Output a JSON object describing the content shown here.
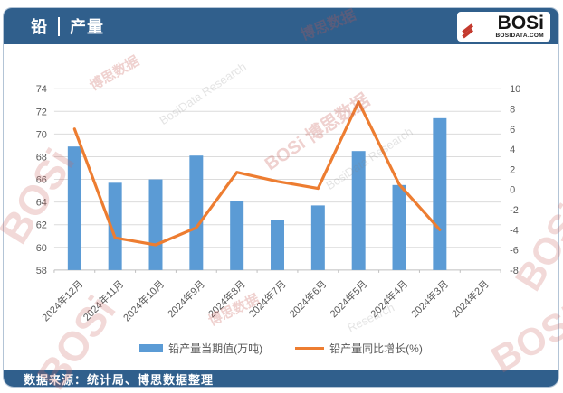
{
  "theme": {
    "brand_blue": "#305F8C",
    "bar_color": "#5B9BD5",
    "line_color": "#ED7D31",
    "axis_text_color": "#595959",
    "gridline_color": "#DCDCDC"
  },
  "header": {
    "title_prefix": "铅",
    "title_name": "产量",
    "logo": {
      "text": "BOSi",
      "subtext": "BOSIDATA.COM"
    }
  },
  "footer": {
    "source_text": "数据来源：统计局、博思数据整理"
  },
  "watermark": {
    "items": [
      {
        "text": "博思数据"
      },
      {
        "text": "BOSi"
      },
      {
        "text": "博思数据"
      },
      {
        "text": "BosiData Research"
      },
      {
        "text": "BOSi 博思数据"
      },
      {
        "text": "BosiData Research"
      },
      {
        "text": "BOSi"
      },
      {
        "text": "博思数据"
      },
      {
        "text": "Research"
      },
      {
        "text": "BOSi"
      },
      {
        "text": "BOSi"
      }
    ]
  },
  "chart_data": {
    "type": "bar+line combo",
    "title": "铅 | 产量",
    "categories": [
      "2024年12月",
      "2024年11月",
      "2024年10月",
      "2024年9月",
      "2024年8月",
      "2024年7月",
      "2024年6月",
      "2024年5月",
      "2024年4月",
      "2024年3月",
      "2024年2月"
    ],
    "series": [
      {
        "name": "铅产量当期值(万吨)",
        "type": "bar",
        "axis": "left",
        "color": "#5B9BD5",
        "values": [
          68.9,
          65.7,
          66.0,
          68.1,
          64.1,
          62.4,
          63.7,
          68.5,
          65.5,
          71.4,
          null
        ]
      },
      {
        "name": "铅产量同比增长(%)",
        "type": "line",
        "axis": "right",
        "color": "#ED7D31",
        "values": [
          6.0,
          -4.8,
          -5.5,
          -3.8,
          1.7,
          0.8,
          0.1,
          8.7,
          0.5,
          -4.0,
          null
        ]
      }
    ],
    "left_axis": {
      "min": 58,
      "max": 74,
      "step": 2,
      "ticks": [
        58,
        60,
        62,
        64,
        66,
        68,
        70,
        72,
        74
      ]
    },
    "right_axis": {
      "min": -8,
      "max": 10,
      "step": 2,
      "ticks": [
        -8,
        -6,
        -4,
        -2,
        0,
        2,
        4,
        6,
        8,
        10
      ]
    },
    "grid": "horizontal gridlines from left axis",
    "legend_position": "bottom",
    "x_label_rotation": -45
  }
}
